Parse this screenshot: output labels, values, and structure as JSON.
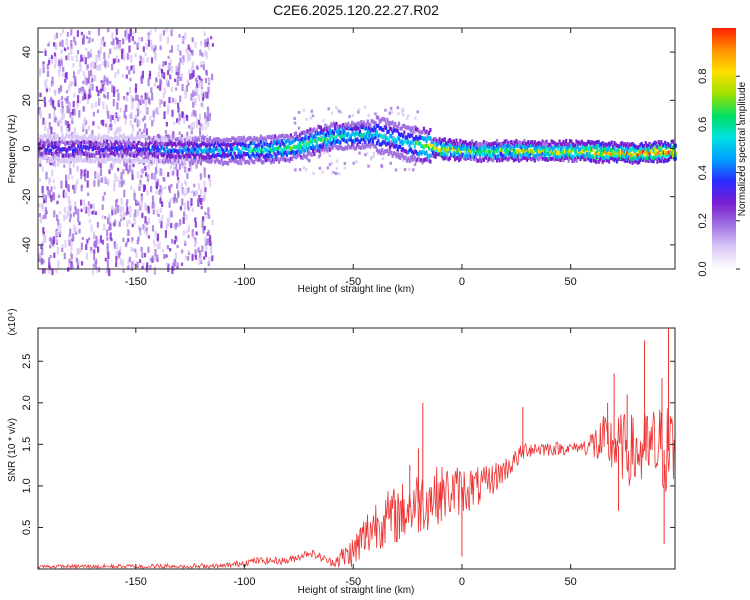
{
  "title": "C2E6.2025.120.22.27.R02",
  "colors": {
    "snr_line": "#ee3333",
    "colormap": [
      "#ffffff",
      "#d9c8f5",
      "#a070e0",
      "#7a1fd0",
      "#2a2aff",
      "#00a0ff",
      "#00e0e0",
      "#00e060",
      "#a0e000",
      "#ffe000",
      "#ff9000",
      "#ff2000"
    ]
  },
  "chart_data": [
    {
      "type": "heatmap",
      "title": "C2E6.2025.120.22.27.R02",
      "xlabel": "Height of straight line (km)",
      "ylabel": "Frequency (Hz)",
      "xlim": [
        -195,
        98
      ],
      "ylim": [
        -50,
        50
      ],
      "xticks": [
        -150,
        -100,
        -50,
        0,
        50
      ],
      "yticks": [
        -40,
        -20,
        0,
        20,
        40
      ],
      "colorbar": {
        "label": "Normalized spectral amplitude",
        "range": [
          0,
          1
        ],
        "ticks": [
          "0.0",
          "0.2",
          "0.4",
          "0.6",
          "0.8"
        ],
        "tick_values": [
          0.0,
          0.2,
          0.4,
          0.6,
          0.8
        ]
      },
      "ridge": {
        "description_points": [
          {
            "x": -195,
            "y": 0,
            "amp": 0.35
          },
          {
            "x": -150,
            "y": 0,
            "amp": 0.35
          },
          {
            "x": -110,
            "y": -1,
            "amp": 0.5
          },
          {
            "x": -80,
            "y": 0,
            "amp": 0.65
          },
          {
            "x": -60,
            "y": 5,
            "amp": 0.65
          },
          {
            "x": -40,
            "y": 6,
            "amp": 0.55
          },
          {
            "x": -25,
            "y": 2,
            "amp": 0.55
          },
          {
            "x": -10,
            "y": 0,
            "amp": 0.85
          },
          {
            "x": 0,
            "y": -1,
            "amp": 0.7
          },
          {
            "x": 50,
            "y": -1,
            "amp": 0.8
          },
          {
            "x": 80,
            "y": -2,
            "amp": 0.9
          },
          {
            "x": 98,
            "y": -1,
            "amp": 0.95
          }
        ],
        "noise_region_x": [
          -195,
          -115
        ]
      }
    },
    {
      "type": "line",
      "xlabel": "Height of straight line (km)",
      "ylabel": "SNR (10 * v/v)",
      "y_multiplier": "(x10⁴)",
      "xlim": [
        -195,
        98
      ],
      "ylim": [
        0,
        2.9
      ],
      "xticks": [
        -150,
        -100,
        -50,
        0,
        50
      ],
      "yticks": [
        0.5,
        1.0,
        1.5,
        2.0,
        2.5
      ],
      "ytick_labels": [
        "0.5",
        "1.0",
        "1.5",
        "2.0",
        "2.5"
      ],
      "envelope": [
        {
          "x": -195,
          "y": 0.03
        },
        {
          "x": -110,
          "y": 0.03
        },
        {
          "x": -95,
          "y": 0.1
        },
        {
          "x": -80,
          "y": 0.1
        },
        {
          "x": -70,
          "y": 0.2
        },
        {
          "x": -60,
          "y": 0.08
        },
        {
          "x": -50,
          "y": 0.2
        },
        {
          "x": -40,
          "y": 0.55
        },
        {
          "x": -30,
          "y": 0.65
        },
        {
          "x": -20,
          "y": 0.8
        },
        {
          "x": -10,
          "y": 0.9
        },
        {
          "x": 0,
          "y": 0.95
        },
        {
          "x": 10,
          "y": 1.0
        },
        {
          "x": 20,
          "y": 1.2
        },
        {
          "x": 30,
          "y": 1.45
        },
        {
          "x": 40,
          "y": 1.45
        },
        {
          "x": 50,
          "y": 1.45
        },
        {
          "x": 60,
          "y": 1.5
        },
        {
          "x": 70,
          "y": 1.5
        },
        {
          "x": 80,
          "y": 1.4
        },
        {
          "x": 90,
          "y": 1.45
        },
        {
          "x": 98,
          "y": 1.4
        }
      ],
      "noise": [
        {
          "x": -195,
          "amp": 0.02
        },
        {
          "x": -60,
          "amp": 0.05
        },
        {
          "x": -45,
          "amp": 0.3
        },
        {
          "x": -20,
          "amp": 0.4
        },
        {
          "x": 0,
          "amp": 0.3
        },
        {
          "x": 25,
          "amp": 0.12
        },
        {
          "x": 55,
          "amp": 0.06
        },
        {
          "x": 65,
          "amp": 0.35
        },
        {
          "x": 98,
          "amp": 0.6
        }
      ],
      "spikes": [
        {
          "x": -18,
          "y": 2.0
        },
        {
          "x": -24,
          "y": 1.25
        },
        {
          "x": -20,
          "y": 1.45
        },
        {
          "x": 28,
          "y": 1.95
        },
        {
          "x": 67,
          "y": 2.0
        },
        {
          "x": 70,
          "y": 2.35
        },
        {
          "x": 76,
          "y": 2.1
        },
        {
          "x": 84,
          "y": 2.75
        },
        {
          "x": 92,
          "y": 2.3
        },
        {
          "x": 95,
          "y": 2.9
        },
        {
          "x": 93,
          "y": 0.3
        },
        {
          "x": 72,
          "y": 0.7
        },
        {
          "x": 0,
          "y": 0.15
        }
      ]
    }
  ]
}
